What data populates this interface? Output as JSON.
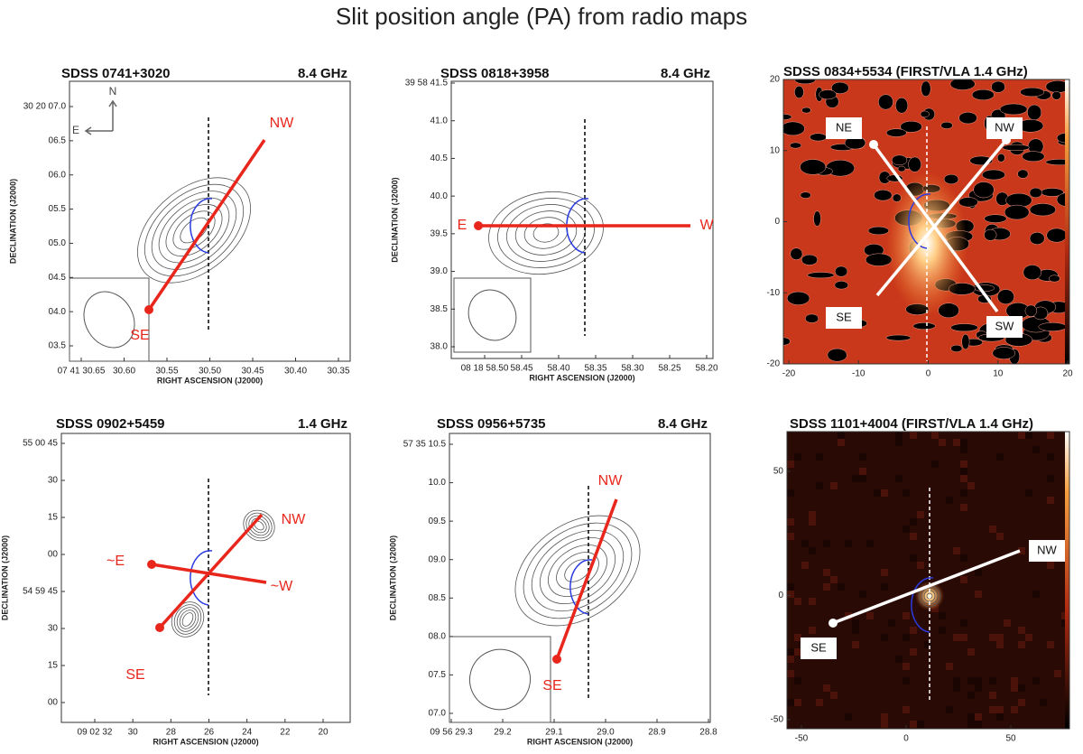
{
  "title": "Slit position angle (PA) from radio maps",
  "panels": [
    {
      "name": "SDSS 0741+3020",
      "band": "8.4 GHz",
      "yticks": [
        "30 20 07.0",
        "06.5",
        "06.0",
        "05.5",
        "05.0",
        "04.5",
        "04.0",
        "03.5"
      ],
      "xticks": [
        "07 41 30.65",
        "30.60",
        "30.55",
        "30.50",
        "30.45",
        "30.40",
        "30.35"
      ],
      "xlabel": "RIGHT ASCENSION (J2000)",
      "ylabel": "DECLINATION (J2000)",
      "labels": [
        "NW",
        "SE"
      ],
      "compass": [
        "N",
        "E"
      ]
    },
    {
      "name": "SDSS 0818+3958",
      "band": "8.4 GHz",
      "yticks": [
        "39 58 41.5",
        "41.0",
        "40.5",
        "40.0",
        "39.5",
        "39.0",
        "38.5",
        "38.0"
      ],
      "xticks": [
        "08 18 58.50",
        "58.45",
        "58.40",
        "58.35",
        "58.30",
        "58.25",
        "58.20"
      ],
      "xlabel": "RIGHT ASCENSION (J2000)",
      "ylabel": "DECLINATION (J2000)",
      "labels": [
        "E",
        "W"
      ]
    },
    {
      "name": "SDSS 0834+5534  (FIRST/VLA 1.4 GHz)",
      "yticks": [
        "20",
        "10",
        "0",
        "-10",
        "-20"
      ],
      "xticks": [
        "-20",
        "-10",
        "0",
        "10",
        "20"
      ],
      "labels": [
        "NE",
        "NW",
        "SE",
        "SW"
      ]
    },
    {
      "name": "SDSS 0902+5459",
      "band": "1.4 GHz",
      "yticks": [
        "55 00 45",
        "30",
        "15",
        "00",
        "54 59 45",
        "30",
        "15",
        "00"
      ],
      "xticks": [
        "09 02 32",
        "30",
        "28",
        "26",
        "24",
        "22",
        "20"
      ],
      "xlabel": "RIGHT ASCENSION (J2000)",
      "ylabel": "DECLINATION (J2000)",
      "labels": [
        "NW",
        "~E",
        "~W",
        "SE"
      ]
    },
    {
      "name": "SDSS 0956+5735",
      "band": "8.4 GHz",
      "yticks": [
        "57 35 10.5",
        "10.0",
        "09.5",
        "09.0",
        "08.5",
        "08.0",
        "07.5",
        "07.0"
      ],
      "xticks": [
        "09 56 29.3",
        "29.2",
        "29.1",
        "29.0",
        "28.9",
        "28.8"
      ],
      "xlabel": "RIGHT ASCENSION (J2000)",
      "ylabel": "DECLINATION (J2000)",
      "labels": [
        "NW",
        "SE"
      ]
    },
    {
      "name": "SDSS 1101+4004  (FIRST/VLA 1.4 GHz)",
      "yticks": [
        "50",
        "0",
        "-50"
      ],
      "xticks": [
        "-50",
        "0",
        "50"
      ],
      "labels": [
        "NW",
        "SE"
      ]
    }
  ]
}
